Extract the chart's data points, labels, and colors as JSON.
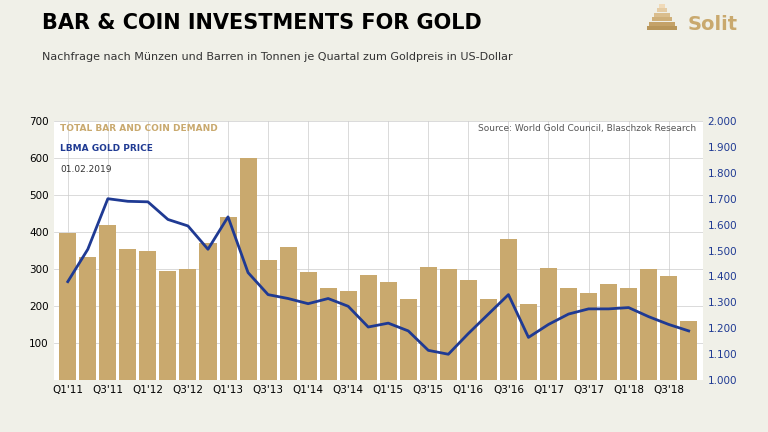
{
  "title": "BAR & COIN INVESTMENTS FOR GOLD",
  "subtitle": "Nachfrage nach Münzen und Barren in Tonnen je Quartal zum Goldpreis in US-Dollar",
  "source_text": "Source: World Gold Council, Blaschzok Research",
  "date_text": "01.02.2019",
  "legend_bar": "TOTAL BAR AND COIN DEMAND",
  "legend_line": "LBMA GOLD PRICE",
  "bar_color": "#C9A96E",
  "line_color": "#1F3A93",
  "fig_bg_color": "#F0F0E8",
  "plot_bg_color": "#FFFFFF",
  "bar_data": [
    398,
    333,
    418,
    355,
    348,
    295,
    300,
    370,
    440,
    600,
    325,
    360,
    293,
    248,
    240,
    283,
    265,
    220,
    305,
    300,
    270,
    220,
    380,
    205,
    303,
    250,
    235,
    260,
    250,
    300,
    280,
    160
  ],
  "gold_price": [
    1380,
    1505,
    1700,
    1690,
    1688,
    1620,
    1595,
    1505,
    1630,
    1415,
    1330,
    1315,
    1295,
    1315,
    1285,
    1205,
    1220,
    1190,
    1115,
    1100,
    1180,
    1255,
    1330,
    1165,
    1215,
    1255,
    1275,
    1275,
    1280,
    1245,
    1215,
    1190
  ],
  "ylim_left": [
    0,
    700
  ],
  "ylim_right": [
    1000,
    2000
  ],
  "yticks_left": [
    0,
    100,
    200,
    300,
    400,
    500,
    600,
    700
  ],
  "yticks_right": [
    1000,
    1100,
    1200,
    1300,
    1400,
    1500,
    1600,
    1700,
    1800,
    1900,
    2000
  ],
  "xtick_positions": [
    0,
    2,
    4,
    6,
    8,
    10,
    12,
    14,
    16,
    18,
    20,
    22,
    24,
    26,
    28,
    30
  ],
  "xtick_labels": [
    "Q1'11",
    "Q3'11",
    "Q1'12",
    "Q3'12",
    "Q1'13",
    "Q3'13",
    "Q1'14",
    "Q3'14",
    "Q1'15",
    "Q3'15",
    "Q1'16",
    "Q3'16",
    "Q1'17",
    "Q3'17",
    "Q1'18",
    "Q3'18"
  ],
  "title_fontsize": 15,
  "subtitle_fontsize": 8,
  "tick_fontsize": 7.5,
  "legend_fontsize": 6.5,
  "source_fontsize": 6.5,
  "logo_text": "Solit",
  "logo_text_color": "#C9A96E",
  "logo_text_fontsize": 14,
  "pyramid_colors": [
    "#B8965A",
    "#C4A268",
    "#CFB07A",
    "#DABE8E",
    "#E5CCA4",
    "#F0DAB8"
  ]
}
